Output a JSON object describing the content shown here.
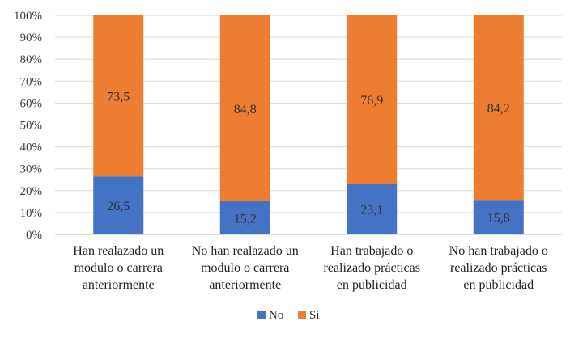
{
  "chart_data": {
    "type": "bar",
    "stacked": true,
    "categories": [
      [
        "Han realazado un",
        "modulo o carrera",
        "anteriormente"
      ],
      [
        "No han realazado un",
        "modulo o carrera",
        "anteriormente"
      ],
      [
        "Han trabajado o",
        "realizado prácticas",
        "en publicidad"
      ],
      [
        "No han trabajado o",
        "realizado prácticas",
        "en publicidad"
      ]
    ],
    "series": [
      {
        "name": "No",
        "color": "#4472C4",
        "values": [
          26.5,
          15.2,
          23.1,
          15.8
        ],
        "labels": [
          "26,5",
          "15,2",
          "23,1",
          "15,8"
        ]
      },
      {
        "name": "Sí",
        "color": "#ED7D31",
        "values": [
          73.5,
          84.8,
          76.9,
          84.2
        ],
        "labels": [
          "73,5",
          "84,8",
          "76,9",
          "84,2"
        ]
      }
    ],
    "ylim": [
      0,
      100
    ],
    "yticks": [
      "0%",
      "10%",
      "20%",
      "30%",
      "40%",
      "50%",
      "60%",
      "70%",
      "80%",
      "90%",
      "100%"
    ],
    "grid": true,
    "legend": "bottom"
  }
}
